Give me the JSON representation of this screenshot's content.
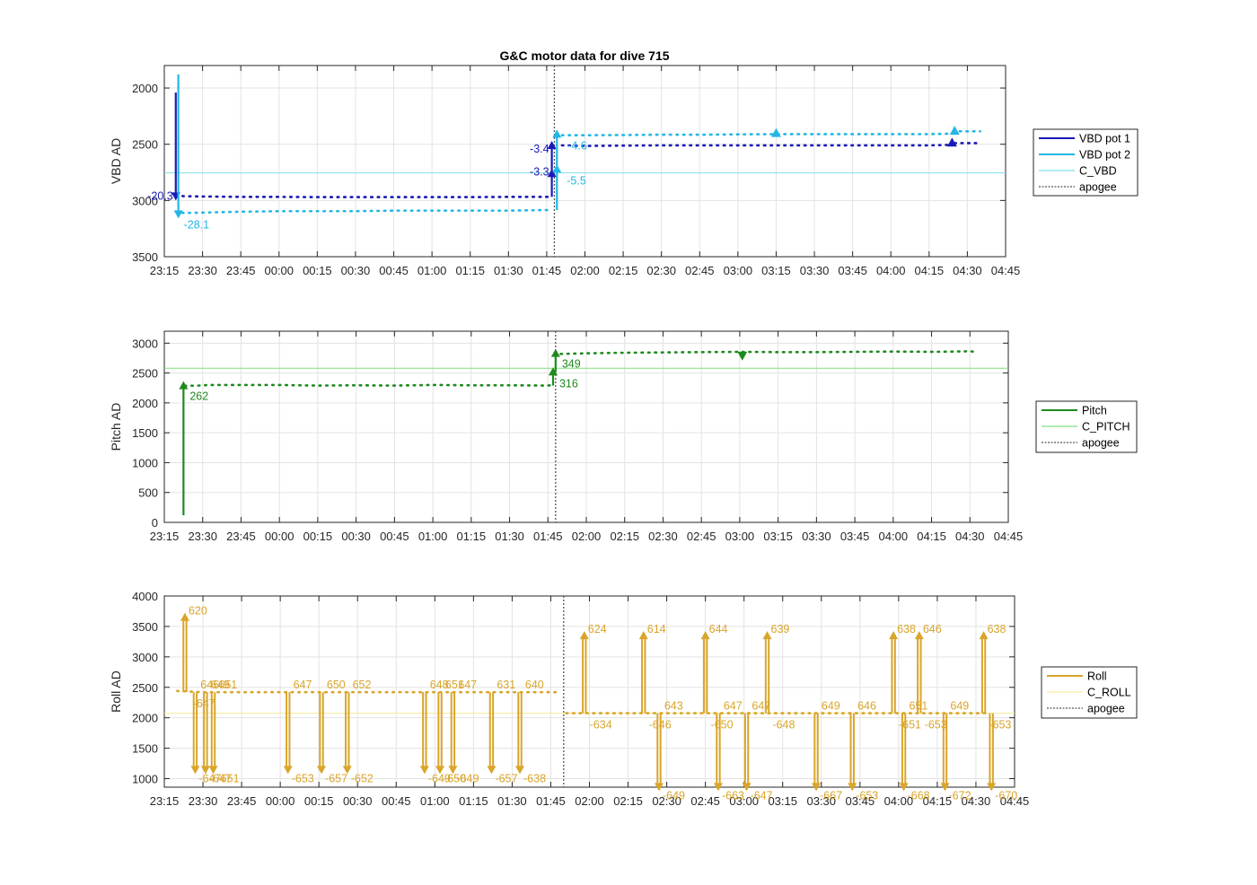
{
  "title": "G&C motor data for dive 715",
  "colors": {
    "vbd1": "#1a1ab8",
    "vbd2": "#22b7e6",
    "c_vbd": "#7fe0e6",
    "pitch": "#1e8a1e",
    "c_pitch": "#7ee07e",
    "roll": "#d9a52a",
    "c_roll": "#f6ec9c",
    "apogee": "#555555",
    "grid": "#e3e3e3",
    "axis": "#262626"
  },
  "chart_data": [
    {
      "type": "line",
      "ylabel": "VBD AD",
      "xlabel": "",
      "x_ticks": [
        "23:15",
        "23:30",
        "23:45",
        "00:00",
        "00:15",
        "00:30",
        "00:45",
        "01:00",
        "01:15",
        "01:30",
        "01:45",
        "02:00",
        "02:15",
        "02:30",
        "02:45",
        "03:00",
        "03:15",
        "03:30",
        "03:45",
        "04:00",
        "04:15",
        "04:30",
        "04:45"
      ],
      "xlim_minutes": [
        0,
        330
      ],
      "ylim": [
        1800,
        3500
      ],
      "y_reversed": true,
      "y_ticks": [
        2000,
        2500,
        3000,
        3500
      ],
      "grid": true,
      "legend": "right",
      "legend_entries": [
        "VBD pot 1",
        "VBD pot 2",
        "C_VBD",
        "apogee"
      ],
      "apogee_minutes": 153,
      "hline": {
        "name": "C_VBD",
        "value": 2755
      },
      "series": [
        {
          "name": "VBD pot 1",
          "segments": [
            {
              "x": [
                4.5,
                6,
                8,
                12,
                18,
                30,
                45,
                60,
                75,
                90,
                105,
                120,
                135,
                150,
                152
              ],
              "y": [
                2960,
                2960,
                2962,
                2964,
                2965,
                2968,
                2968,
                2970,
                2970,
                2970,
                2970,
                2970,
                2968,
                2968,
                2968
              ]
            },
            {
              "x": [
                156,
                165,
                180,
                195,
                210,
                225,
                240,
                255,
                270,
                285,
                300,
                309
              ],
              "y": [
                2510,
                2515,
                2512,
                2510,
                2510,
                2510,
                2510,
                2510,
                2510,
                2510,
                2510,
                2505
              ]
            },
            {
              "x": [
                310,
                315,
                320
              ],
              "y": [
                2490,
                2490,
                2490
              ]
            }
          ]
        },
        {
          "name": "VBD pot 2",
          "segments": [
            {
              "x": [
                7,
                10,
                15,
                20,
                30,
                45,
                60,
                75,
                90,
                105,
                120,
                135,
                150,
                152
              ],
              "y": [
                3110,
                3110,
                3108,
                3105,
                3100,
                3095,
                3095,
                3095,
                3090,
                3090,
                3090,
                3090,
                3085,
                3085
              ]
            },
            {
              "x": [
                156,
                165,
                180,
                195,
                210,
                225,
                240,
                255,
                270,
                285,
                300,
                310
              ],
              "y": [
                2420,
                2420,
                2418,
                2415,
                2415,
                2412,
                2410,
                2410,
                2410,
                2410,
                2410,
                2405
              ]
            },
            {
              "x": [
                312,
                316,
                320
              ],
              "y": [
                2385,
                2385,
                2385
              ]
            }
          ]
        }
      ],
      "moves": [
        {
          "series": "VBD pot 1",
          "x": 4.5,
          "y_from": 2040,
          "y_to": 2960,
          "marker": "down",
          "label": "-20.3"
        },
        {
          "series": "VBD pot 2",
          "x": 5.5,
          "y_from": 1880,
          "y_to": 3120,
          "marker": "down",
          "label": "-28.1"
        },
        {
          "series": "VBD pot 1",
          "x": 152,
          "y_from": 2968,
          "y_to": 2760,
          "marker": "up",
          "label": "-3.3"
        },
        {
          "series": "VBD pot 1",
          "x": 152,
          "y_from": 2760,
          "y_to": 2510,
          "marker": "up",
          "label": "-3.4"
        },
        {
          "series": "VBD pot 2",
          "x": 154,
          "y_from": 3085,
          "y_to": 2720,
          "marker": "up",
          "label": "-5.5"
        },
        {
          "series": "VBD pot 2",
          "x": 154,
          "y_from": 2720,
          "y_to": 2410,
          "marker": "up",
          "label": "-4.6"
        }
      ],
      "markers": [
        {
          "series": "VBD pot 2",
          "x": 240,
          "y": 2400,
          "marker": "up"
        },
        {
          "series": "VBD pot 1",
          "x": 309,
          "y": 2485,
          "marker": "up"
        },
        {
          "series": "VBD pot 2",
          "x": 310,
          "y": 2380,
          "marker": "up"
        }
      ]
    },
    {
      "type": "line",
      "ylabel": "Pitch AD",
      "xlabel": "",
      "x_ticks": [
        "23:15",
        "23:30",
        "23:45",
        "00:00",
        "00:15",
        "00:30",
        "00:45",
        "01:00",
        "01:15",
        "01:30",
        "01:45",
        "02:00",
        "02:15",
        "02:30",
        "02:45",
        "03:00",
        "03:15",
        "03:30",
        "03:45",
        "04:00",
        "04:15",
        "04:30",
        "04:45"
      ],
      "xlim_minutes": [
        0,
        330
      ],
      "ylim": [
        0,
        3200
      ],
      "y_ticks": [
        0,
        500,
        1000,
        1500,
        2000,
        2500,
        3000
      ],
      "grid": true,
      "legend": "right",
      "legend_entries": [
        "Pitch",
        "C_PITCH",
        "apogee"
      ],
      "apogee_minutes": 153,
      "hline": {
        "name": "C_PITCH",
        "value": 2580
      },
      "series": [
        {
          "name": "Pitch",
          "segments": [
            {
              "x": [
                8,
                10,
                12,
                15,
                18,
                30,
                45,
                60,
                75,
                90,
                105,
                120,
                135,
                150,
                152
              ],
              "y": [
                2285,
                2290,
                2285,
                2295,
                2300,
                2300,
                2300,
                2290,
                2295,
                2290,
                2300,
                2295,
                2295,
                2290,
                2300
              ]
            },
            {
              "x": [
                155,
                165,
                180,
                195,
                210,
                225,
                240,
                255,
                270,
                285,
                300,
                310,
                315,
                318
              ],
              "y": [
                2820,
                2830,
                2840,
                2845,
                2850,
                2855,
                2850,
                2850,
                2855,
                2860,
                2855,
                2860,
                2865,
                2850
              ]
            }
          ]
        }
      ],
      "moves": [
        {
          "series": "Pitch",
          "x": 7.5,
          "y_from": 120,
          "y_to": 2290,
          "marker": "up",
          "label": "262"
        },
        {
          "series": "Pitch",
          "x": 152,
          "y_from": 2290,
          "y_to": 2520,
          "marker": "up",
          "label": "316"
        },
        {
          "series": "Pitch",
          "x": 153,
          "y_from": 2520,
          "y_to": 2830,
          "marker": "up",
          "label": "349"
        }
      ],
      "markers": [
        {
          "series": "Pitch",
          "x": 226,
          "y": 2790,
          "marker": "down"
        }
      ]
    },
    {
      "type": "line",
      "ylabel": "Roll AD",
      "xlabel": "",
      "x_ticks": [
        "23:15",
        "23:30",
        "23:45",
        "00:00",
        "00:15",
        "00:30",
        "00:45",
        "01:00",
        "01:15",
        "01:30",
        "01:45",
        "02:00",
        "02:15",
        "02:30",
        "02:45",
        "03:00",
        "03:15",
        "03:30",
        "03:45",
        "04:00",
        "04:15",
        "04:30",
        "04:45"
      ],
      "xlim_minutes": [
        0,
        330
      ],
      "ylim": [
        860,
        4000
      ],
      "y_ticks": [
        1000,
        1500,
        2000,
        2500,
        3000,
        3500,
        4000
      ],
      "grid": true,
      "legend": "right",
      "legend_entries": [
        "Roll",
        "C_ROLL",
        "apogee"
      ],
      "apogee_minutes": 155,
      "hline": {
        "name": "C_ROLL",
        "value": 2075
      },
      "series": [
        {
          "name": "Roll",
          "segments": [
            {
              "x": [
                5,
                15,
                30,
                45,
                60,
                75,
                90,
                105,
                120,
                135,
                152
              ],
              "y": [
                2440,
                2420,
                2420,
                2420,
                2420,
                2420,
                2420,
                2420,
                2420,
                2420,
                2420
              ]
            },
            {
              "x": [
                156,
                170,
                185,
                200,
                215,
                230,
                245,
                260,
                275,
                290,
                305,
                320
              ],
              "y": [
                2075,
                2075,
                2075,
                2075,
                2075,
                2075,
                2075,
                2075,
                2075,
                2075,
                2075,
                2075
              ]
            }
          ]
        }
      ],
      "spikes": [
        {
          "x": 8,
          "peak": 3650,
          "label": "620",
          "dir": "up"
        },
        {
          "x": 12,
          "peak": 1150,
          "label": "-647",
          "dir": "down"
        },
        {
          "x": 16,
          "peak": 1150,
          "label": "-647",
          "dir": "down"
        },
        {
          "x": 19,
          "peak": 1150,
          "label": "-651",
          "dir": "down"
        },
        {
          "x": 48,
          "peak": 1150,
          "label": "-653",
          "dir": "down"
        },
        {
          "x": 61,
          "peak": 1150,
          "label": "-657",
          "dir": "down"
        },
        {
          "x": 71,
          "peak": 1150,
          "label": "-652",
          "dir": "down"
        },
        {
          "x": 101,
          "peak": 1150,
          "label": "-649",
          "dir": "down"
        },
        {
          "x": 107,
          "peak": 1150,
          "label": "-650",
          "dir": "down"
        },
        {
          "x": 112,
          "peak": 1150,
          "label": "-649",
          "dir": "down"
        },
        {
          "x": 127,
          "peak": 1150,
          "label": "-657",
          "dir": "down"
        },
        {
          "x": 138,
          "peak": 1150,
          "label": "-638",
          "dir": "down"
        },
        {
          "x": 163,
          "peak": 3350,
          "label": "624",
          "dir": "up"
        },
        {
          "x": 186,
          "peak": 3350,
          "label": "614",
          "dir": "up"
        },
        {
          "x": 192,
          "peak": 870,
          "label": "-649",
          "dir": "down"
        },
        {
          "x": 210,
          "peak": 3350,
          "label": "644",
          "dir": "up"
        },
        {
          "x": 215,
          "peak": 870,
          "label": "-663",
          "dir": "down"
        },
        {
          "x": 226,
          "peak": 870,
          "label": "-647",
          "dir": "down"
        },
        {
          "x": 234,
          "peak": 3350,
          "label": "639",
          "dir": "up"
        },
        {
          "x": 253,
          "peak": 870,
          "label": "-667",
          "dir": "down"
        },
        {
          "x": 267,
          "peak": 870,
          "label": "-653",
          "dir": "down"
        },
        {
          "x": 283,
          "peak": 3350,
          "label": "638",
          "dir": "up"
        },
        {
          "x": 287,
          "peak": 870,
          "label": "-668",
          "dir": "down"
        },
        {
          "x": 293,
          "peak": 3350,
          "label": "646",
          "dir": "up"
        },
        {
          "x": 303,
          "peak": 870,
          "label": "-672",
          "dir": "down"
        },
        {
          "x": 318,
          "peak": 3350,
          "label": "638",
          "dir": "up"
        },
        {
          "x": 321,
          "peak": 870,
          "label": "-670",
          "dir": "down"
        }
      ],
      "returns": [
        {
          "x": 10,
          "label": "-647"
        },
        {
          "x": 13,
          "label": "646"
        },
        {
          "x": 17,
          "label": "649"
        },
        {
          "x": 20,
          "label": "651"
        },
        {
          "x": 49,
          "label": "647"
        },
        {
          "x": 62,
          "label": "650"
        },
        {
          "x": 72,
          "label": "652"
        },
        {
          "x": 102,
          "label": "648"
        },
        {
          "x": 108,
          "label": "651"
        },
        {
          "x": 113,
          "label": "647"
        },
        {
          "x": 128,
          "label": "631"
        },
        {
          "x": 139,
          "label": "640"
        },
        {
          "x": 164,
          "label": "-634"
        },
        {
          "x": 187,
          "label": "-646"
        },
        {
          "x": 193,
          "label": "643"
        },
        {
          "x": 211,
          "label": "-650"
        },
        {
          "x": 216,
          "label": "647"
        },
        {
          "x": 227,
          "label": "647"
        },
        {
          "x": 235,
          "label": "-648"
        },
        {
          "x": 254,
          "label": "649"
        },
        {
          "x": 268,
          "label": "646"
        },
        {
          "x": 284,
          "label": "-651"
        },
        {
          "x": 288,
          "label": "651"
        },
        {
          "x": 294,
          "label": "-653"
        },
        {
          "x": 304,
          "label": "649"
        },
        {
          "x": 319,
          "label": "-653"
        }
      ]
    }
  ]
}
